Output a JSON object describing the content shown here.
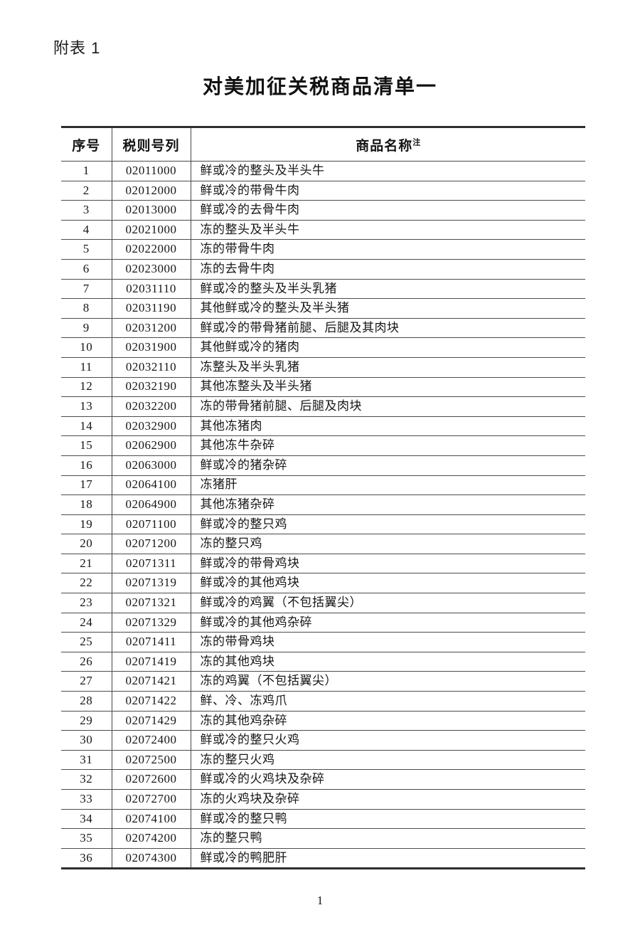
{
  "page": {
    "attachment_label": "附表 1",
    "title": "对美加征关税商品清单一",
    "page_number": "1"
  },
  "table": {
    "headers": {
      "index": "序号",
      "code": "税则号列",
      "name": "商品名称"
    },
    "note_mark": "注",
    "rows": [
      {
        "no": "1",
        "code": "02011000",
        "name": "鲜或冷的整头及半头牛"
      },
      {
        "no": "2",
        "code": "02012000",
        "name": "鲜或冷的带骨牛肉"
      },
      {
        "no": "3",
        "code": "02013000",
        "name": "鲜或冷的去骨牛肉"
      },
      {
        "no": "4",
        "code": "02021000",
        "name": "冻的整头及半头牛"
      },
      {
        "no": "5",
        "code": "02022000",
        "name": "冻的带骨牛肉"
      },
      {
        "no": "6",
        "code": "02023000",
        "name": "冻的去骨牛肉"
      },
      {
        "no": "7",
        "code": "02031110",
        "name": "鲜或冷的整头及半头乳猪"
      },
      {
        "no": "8",
        "code": "02031190",
        "name": "其他鲜或冷的整头及半头猪"
      },
      {
        "no": "9",
        "code": "02031200",
        "name": "鲜或冷的带骨猪前腿、后腿及其肉块"
      },
      {
        "no": "10",
        "code": "02031900",
        "name": "其他鲜或冷的猪肉"
      },
      {
        "no": "11",
        "code": "02032110",
        "name": "冻整头及半头乳猪"
      },
      {
        "no": "12",
        "code": "02032190",
        "name": "其他冻整头及半头猪"
      },
      {
        "no": "13",
        "code": "02032200",
        "name": "冻的带骨猪前腿、后腿及肉块"
      },
      {
        "no": "14",
        "code": "02032900",
        "name": "其他冻猪肉"
      },
      {
        "no": "15",
        "code": "02062900",
        "name": "其他冻牛杂碎"
      },
      {
        "no": "16",
        "code": "02063000",
        "name": "鲜或冷的猪杂碎"
      },
      {
        "no": "17",
        "code": "02064100",
        "name": "冻猪肝"
      },
      {
        "no": "18",
        "code": "02064900",
        "name": "其他冻猪杂碎"
      },
      {
        "no": "19",
        "code": "02071100",
        "name": "鲜或冷的整只鸡"
      },
      {
        "no": "20",
        "code": "02071200",
        "name": "冻的整只鸡"
      },
      {
        "no": "21",
        "code": "02071311",
        "name": "鲜或冷的带骨鸡块"
      },
      {
        "no": "22",
        "code": "02071319",
        "name": "鲜或冷的其他鸡块"
      },
      {
        "no": "23",
        "code": "02071321",
        "name": "鲜或冷的鸡翼（不包括翼尖）"
      },
      {
        "no": "24",
        "code": "02071329",
        "name": "鲜或冷的其他鸡杂碎"
      },
      {
        "no": "25",
        "code": "02071411",
        "name": "冻的带骨鸡块"
      },
      {
        "no": "26",
        "code": "02071419",
        "name": "冻的其他鸡块"
      },
      {
        "no": "27",
        "code": "02071421",
        "name": "冻的鸡翼（不包括翼尖）"
      },
      {
        "no": "28",
        "code": "02071422",
        "name": "鲜、冷、冻鸡爪"
      },
      {
        "no": "29",
        "code": "02071429",
        "name": "冻的其他鸡杂碎"
      },
      {
        "no": "30",
        "code": "02072400",
        "name": "鲜或冷的整只火鸡"
      },
      {
        "no": "31",
        "code": "02072500",
        "name": "冻的整只火鸡"
      },
      {
        "no": "32",
        "code": "02072600",
        "name": "鲜或冷的火鸡块及杂碎"
      },
      {
        "no": "33",
        "code": "02072700",
        "name": "冻的火鸡块及杂碎"
      },
      {
        "no": "34",
        "code": "02074100",
        "name": "鲜或冷的整只鸭"
      },
      {
        "no": "35",
        "code": "02074200",
        "name": "冻的整只鸭"
      },
      {
        "no": "36",
        "code": "02074300",
        "name": "鲜或冷的鸭肥肝"
      }
    ]
  }
}
